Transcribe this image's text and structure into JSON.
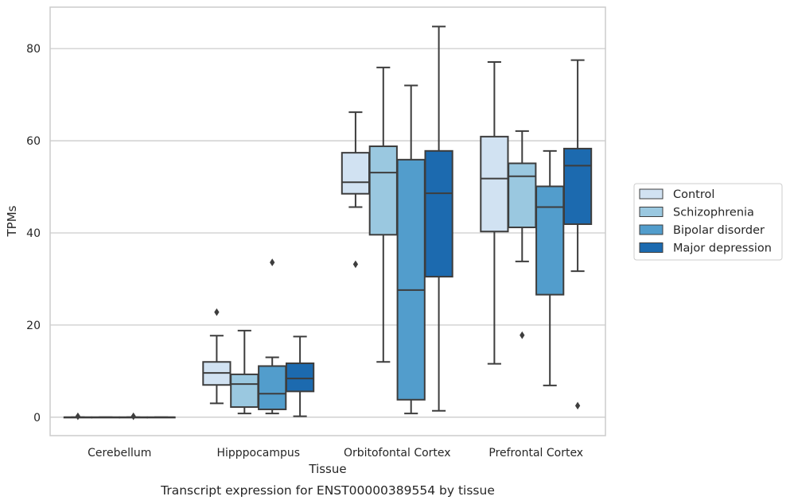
{
  "chart_data": {
    "type": "boxplot",
    "caption": "Transcript expression for ENST00000389554 by tissue",
    "xlabel": "Tissue",
    "ylabel": "TPMs",
    "ylim": [
      -4,
      89
    ],
    "yticks": [
      0,
      20,
      40,
      60,
      80
    ],
    "grid": true,
    "legend_position": "right",
    "categories": [
      "Cerebellum",
      "Hipppocampus",
      "Orbitofontal Cortex",
      "Prefrontal Cortex"
    ],
    "series": [
      {
        "name": "Control",
        "color": "#d1e2f2",
        "boxes": [
          {
            "whislo": 0,
            "q1": 0,
            "med": 0,
            "q3": 0,
            "whishi": 0,
            "fliers": [
              0.2
            ]
          },
          {
            "whislo": 3,
            "q1": 7,
            "med": 9.6,
            "q3": 12,
            "whishi": 17.7,
            "fliers": [
              22.8
            ]
          },
          {
            "whislo": 45.6,
            "q1": 48.5,
            "med": 51,
            "q3": 57.4,
            "whishi": 66.2,
            "fliers": [
              33.2
            ]
          },
          {
            "whislo": 11.6,
            "q1": 40.3,
            "med": 51.8,
            "q3": 60.9,
            "whishi": 77.1,
            "fliers": []
          }
        ]
      },
      {
        "name": "Schizophrenia",
        "color": "#9ac8e0",
        "boxes": [
          {
            "whislo": 0,
            "q1": 0,
            "med": 0,
            "q3": 0,
            "whishi": 0,
            "fliers": []
          },
          {
            "whislo": 0.8,
            "q1": 2.2,
            "med": 7.2,
            "q3": 9.3,
            "whishi": 18.8,
            "fliers": []
          },
          {
            "whislo": 12,
            "q1": 39.6,
            "med": 53.1,
            "q3": 58.8,
            "whishi": 75.9,
            "fliers": []
          },
          {
            "whislo": 33.8,
            "q1": 41.2,
            "med": 52.3,
            "q3": 55.1,
            "whishi": 62.1,
            "fliers": [
              17.8
            ]
          }
        ]
      },
      {
        "name": "Bipolar disorder",
        "color": "#529dcc",
        "boxes": [
          {
            "whislo": 0,
            "q1": 0,
            "med": 0,
            "q3": 0,
            "whishi": 0,
            "fliers": [
              0.2
            ]
          },
          {
            "whislo": 0.8,
            "q1": 1.7,
            "med": 5.1,
            "q3": 11.1,
            "whishi": 13,
            "fliers": [
              33.6
            ]
          },
          {
            "whislo": 0.8,
            "q1": 3.8,
            "med": 27.6,
            "q3": 55.9,
            "whishi": 72,
            "fliers": []
          },
          {
            "whislo": 6.9,
            "q1": 26.6,
            "med": 45.6,
            "q3": 50.1,
            "whishi": 57.8,
            "fliers": []
          }
        ]
      },
      {
        "name": "Major depression",
        "color": "#1c6aaf",
        "boxes": [
          {
            "whislo": 0,
            "q1": 0,
            "med": 0,
            "q3": 0,
            "whishi": 0,
            "fliers": []
          },
          {
            "whislo": 0.2,
            "q1": 5.6,
            "med": 8.4,
            "q3": 11.7,
            "whishi": 17.5,
            "fliers": []
          },
          {
            "whislo": 1.4,
            "q1": 30.5,
            "med": 48.6,
            "q3": 57.8,
            "whishi": 84.8,
            "fliers": []
          },
          {
            "whislo": 31.7,
            "q1": 41.9,
            "med": 54.6,
            "q3": 58.3,
            "whishi": 77.5,
            "fliers": [
              2.5
            ]
          }
        ]
      }
    ]
  }
}
